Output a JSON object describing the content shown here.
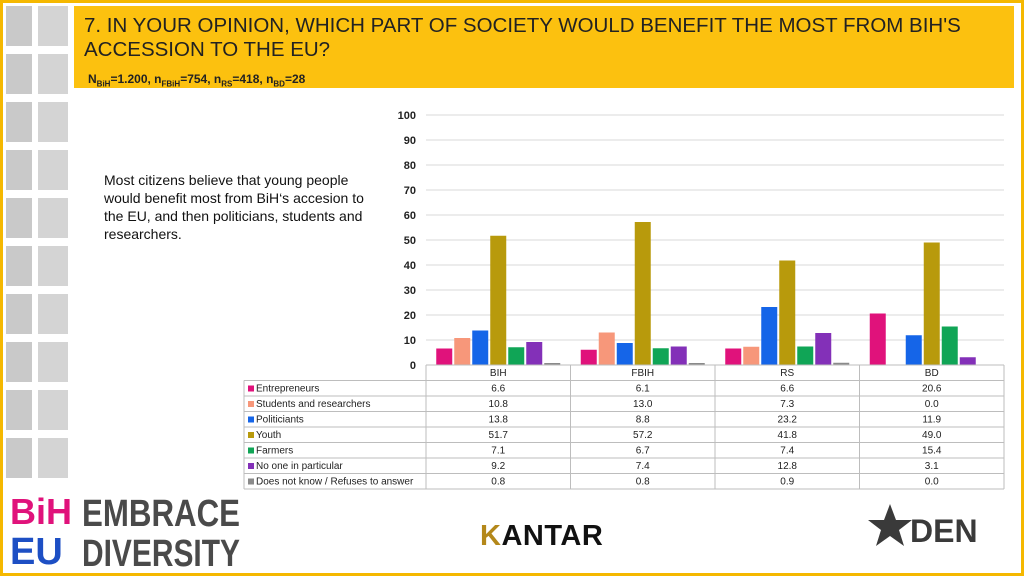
{
  "header": {
    "title": "7. IN YOUR OPINION, WHICH PART OF SOCIETY WOULD BENEFIT THE MOST FROM BIH'S ACCESSION TO THE EU?",
    "sample": {
      "n_bih_label": "N",
      "n_bih_sub": "BiH",
      "n_bih_val": "=1.200, ",
      "n_fbih_label": "n",
      "n_fbih_sub": "FBiH",
      "n_fbih_val": "=754, ",
      "n_rs_label": "n",
      "n_rs_sub": "RS",
      "n_rs_val": "=418, ",
      "n_bd_label": "n",
      "n_bd_sub": "BD",
      "n_bd_val": "=28"
    }
  },
  "note": "Most citizens believe that young people would benefit most from BiH‘s accesion to the EU, and then politicians, students and researchers.",
  "chart_data": {
    "type": "bar",
    "categories": [
      "BIH",
      "FBIH",
      "RS",
      "BD"
    ],
    "ylim": [
      0,
      100
    ],
    "yticks": [
      0,
      10,
      20,
      30,
      40,
      50,
      60,
      70,
      80,
      90,
      100
    ],
    "grid": true,
    "series": [
      {
        "name": "Entrepreneurs",
        "color": "#e0127b",
        "values": [
          6.6,
          6.1,
          6.6,
          20.6
        ]
      },
      {
        "name": "Students and researchers",
        "color": "#f7977a",
        "values": [
          10.8,
          13.0,
          7.3,
          0.0
        ]
      },
      {
        "name": "Politiciants",
        "color": "#1565e8",
        "values": [
          13.8,
          8.8,
          23.2,
          11.9
        ]
      },
      {
        "name": "Youth",
        "color": "#b89a0c",
        "values": [
          51.7,
          57.2,
          41.8,
          49.0
        ]
      },
      {
        "name": "Farmers",
        "color": "#10a556",
        "values": [
          7.1,
          6.7,
          7.4,
          15.4
        ]
      },
      {
        "name": "No one in particular",
        "color": "#8330b8",
        "values": [
          9.2,
          7.4,
          12.8,
          3.1
        ]
      },
      {
        "name": "Does not know / Refuses to answer",
        "color": "#8a8a8a",
        "values": [
          0.8,
          0.8,
          0.9,
          0.0
        ]
      }
    ],
    "data_table": true
  },
  "brand": {
    "logo_top": "BiH",
    "logo_bottom": "EU",
    "line1": "EMBRACE",
    "line2": "DIVERSITY"
  },
  "footer": {
    "kantar_k": "K",
    "kantar_rest": "ANTAR",
    "den": "DEN"
  },
  "colors": {
    "title_bg": "#fcc10f",
    "frame": "#f5b800",
    "sidebar": "#c9c9c9"
  }
}
